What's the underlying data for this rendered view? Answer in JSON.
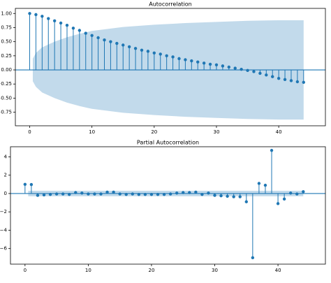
{
  "chart_data": [
    {
      "type": "stem",
      "title": "Autocorrelation",
      "color": "#1f77b4",
      "x": [
        0,
        1,
        2,
        3,
        4,
        5,
        6,
        7,
        8,
        9,
        10,
        11,
        12,
        13,
        14,
        15,
        16,
        17,
        18,
        19,
        20,
        21,
        22,
        23,
        24,
        25,
        26,
        27,
        28,
        29,
        30,
        31,
        32,
        33,
        34,
        35,
        36,
        37,
        38,
        39,
        40,
        41,
        42,
        43,
        44
      ],
      "values": [
        1.0,
        0.98,
        0.95,
        0.91,
        0.87,
        0.83,
        0.79,
        0.74,
        0.7,
        0.65,
        0.61,
        0.57,
        0.53,
        0.5,
        0.47,
        0.44,
        0.41,
        0.38,
        0.35,
        0.33,
        0.3,
        0.28,
        0.25,
        0.23,
        0.2,
        0.18,
        0.16,
        0.14,
        0.12,
        0.1,
        0.09,
        0.07,
        0.05,
        0.03,
        0.01,
        -0.01,
        -0.03,
        -0.06,
        -0.09,
        -0.12,
        -0.15,
        -0.17,
        -0.19,
        -0.21,
        -0.22
      ],
      "band": {
        "x": [
          0.5,
          1,
          2,
          4,
          6,
          8,
          10,
          15,
          20,
          25,
          30,
          35,
          40,
          44
        ],
        "upper": [
          0.2,
          0.3,
          0.4,
          0.5,
          0.58,
          0.64,
          0.69,
          0.76,
          0.8,
          0.83,
          0.85,
          0.87,
          0.88,
          0.88
        ],
        "lower": [
          -0.2,
          -0.3,
          -0.4,
          -0.5,
          -0.58,
          -0.64,
          -0.69,
          -0.76,
          -0.8,
          -0.83,
          -0.85,
          -0.87,
          -0.88,
          -0.88
        ]
      },
      "xlim": [
        -2.3,
        47.5
      ],
      "ylim": [
        -0.99,
        1.09
      ],
      "xticks": [
        0,
        10,
        20,
        30,
        40
      ],
      "yticks": [
        {
          "value": -0.75,
          "label": "−0.75"
        },
        {
          "value": -0.5,
          "label": "−0.50"
        },
        {
          "value": -0.25,
          "label": "−0.25"
        },
        {
          "value": 0,
          "label": "0.00"
        },
        0.25,
        {
          "value": 0.5,
          "label": "0.50"
        },
        0.75,
        {
          "value": 1,
          "label": "1.00"
        }
      ]
    },
    {
      "type": "stem",
      "title": "Partial Autocorrelation",
      "color": "#1f77b4",
      "x": [
        0,
        1,
        2,
        3,
        4,
        5,
        6,
        7,
        8,
        9,
        10,
        11,
        12,
        13,
        14,
        15,
        16,
        17,
        18,
        19,
        20,
        21,
        22,
        23,
        24,
        25,
        26,
        27,
        28,
        29,
        30,
        31,
        32,
        33,
        34,
        35,
        36,
        37,
        38,
        39,
        40,
        41,
        42,
        43,
        44
      ],
      "values": [
        1.0,
        0.98,
        -0.2,
        -0.15,
        -0.1,
        -0.05,
        -0.05,
        -0.1,
        0.1,
        0.05,
        -0.05,
        -0.05,
        -0.05,
        0.15,
        0.15,
        -0.05,
        -0.1,
        -0.05,
        -0.1,
        -0.1,
        -0.1,
        -0.1,
        -0.1,
        -0.05,
        0.05,
        0.1,
        0.1,
        0.15,
        -0.1,
        0.05,
        -0.2,
        -0.25,
        -0.3,
        -0.35,
        -0.35,
        -0.9,
        -7.0,
        1.1,
        0.9,
        4.7,
        -1.1,
        -0.6,
        0.05,
        -0.05,
        0.2
      ],
      "band": {
        "x": [
          0.5,
          44
        ],
        "upper": [
          0.3,
          0.3
        ],
        "lower": [
          -0.3,
          -0.3
        ]
      },
      "xlim": [
        -2.3,
        47.5
      ],
      "ylim": [
        -7.7,
        5.1
      ],
      "xticks": [
        0,
        10,
        20,
        30,
        40
      ],
      "yticks": [
        {
          "value": -6,
          "label": "−6"
        },
        {
          "value": -4,
          "label": "−4"
        },
        {
          "value": -2,
          "label": "−2"
        },
        0,
        2,
        4
      ]
    }
  ]
}
